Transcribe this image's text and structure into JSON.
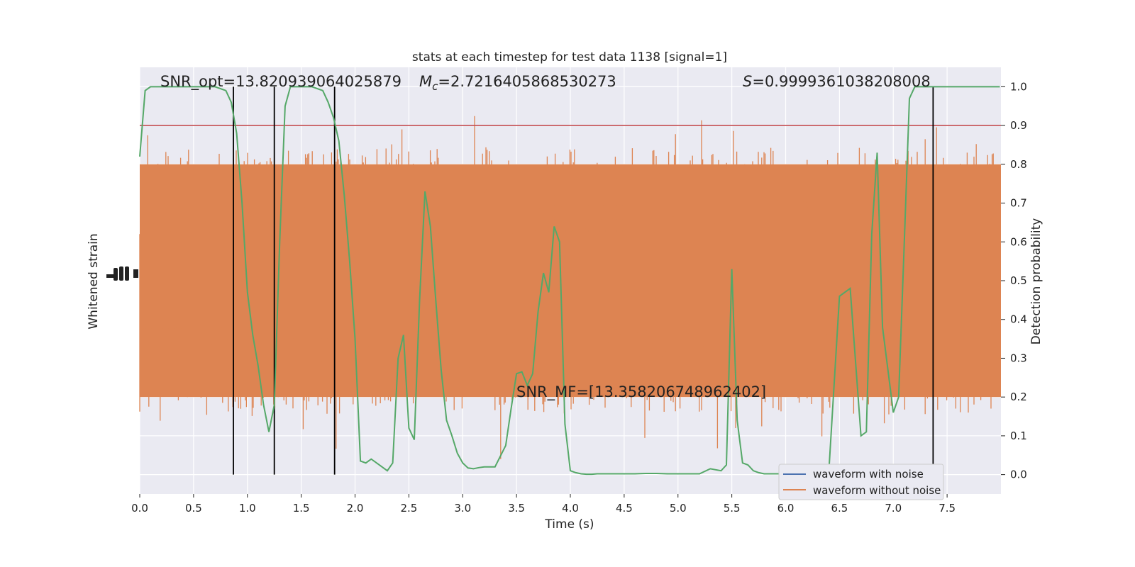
{
  "chart_data": {
    "type": "line",
    "title": "stats at each timestep for test data 1138 [signal=1]",
    "xlabel": "Time (s)",
    "ylabel_left": "Whitened strain",
    "ylabel_right": "Detection probability",
    "xlim": [
      0,
      8
    ],
    "ylim_right": [
      -0.05,
      1.05
    ],
    "x_ticks": [
      "0.0",
      "0.5",
      "1.0",
      "1.5",
      "2.0",
      "2.5",
      "3.0",
      "3.5",
      "4.0",
      "4.5",
      "5.0",
      "5.5",
      "6.0",
      "6.5",
      "7.0",
      "7.5"
    ],
    "y_ticks_right": [
      "0.0",
      "0.1",
      "0.2",
      "0.3",
      "0.4",
      "0.5",
      "0.6",
      "0.7",
      "0.8",
      "0.9",
      "1.0"
    ],
    "grid": true,
    "threshold": 0.9,
    "threshold_color": "#c44e52",
    "detection_boundaries": [
      0.87,
      1.25,
      1.81,
      7.37
    ],
    "annotations": {
      "snr_opt": "SNR_opt=13.820939064025879",
      "chirp_mass_symbol": "M",
      "chirp_mass_subscript": "c",
      "chirp_mass_value": "=2.7216405868530273",
      "s_symbol": "S",
      "s_value": "=0.9999361038208008",
      "snr_mf": "SNR_MF=[13.358206748962402]"
    },
    "legend": {
      "position": "lower-right",
      "entries": [
        {
          "name": "waveform with noise",
          "color": "#4c72b0"
        },
        {
          "name": "waveform without noise",
          "color": "#dd8452"
        }
      ]
    },
    "noise_color": "#dd8452",
    "noise_band": {
      "center": 0.5,
      "core_half_width": 0.3,
      "spike_extent": 0.5
    },
    "probability_color": "#55a868",
    "probability_series": {
      "name": "Detection probability",
      "x": [
        0.0,
        0.05,
        0.1,
        0.15,
        0.2,
        0.3,
        0.4,
        0.5,
        0.6,
        0.7,
        0.8,
        0.85,
        0.9,
        0.95,
        1.0,
        1.05,
        1.1,
        1.15,
        1.2,
        1.25,
        1.3,
        1.35,
        1.4,
        1.5,
        1.6,
        1.7,
        1.75,
        1.8,
        1.85,
        1.9,
        1.95,
        2.0,
        2.05,
        2.1,
        2.15,
        2.2,
        2.3,
        2.35,
        2.4,
        2.45,
        2.5,
        2.55,
        2.6,
        2.65,
        2.7,
        2.75,
        2.8,
        2.85,
        2.9,
        2.95,
        3.0,
        3.05,
        3.1,
        3.15,
        3.2,
        3.3,
        3.4,
        3.45,
        3.5,
        3.55,
        3.6,
        3.65,
        3.7,
        3.75,
        3.8,
        3.85,
        3.9,
        3.95,
        4.0,
        4.05,
        4.1,
        4.15,
        4.2,
        4.25,
        4.3,
        4.4,
        4.5,
        4.6,
        4.7,
        4.8,
        4.9,
        5.0,
        5.1,
        5.2,
        5.3,
        5.4,
        5.45,
        5.5,
        5.55,
        5.6,
        5.65,
        5.7,
        5.75,
        5.8,
        5.85,
        5.9,
        5.95,
        6.0,
        6.1,
        6.2,
        6.3,
        6.4,
        6.5,
        6.6,
        6.7,
        6.75,
        6.8,
        6.85,
        6.9,
        6.95,
        7.0,
        7.05,
        7.1,
        7.15,
        7.2,
        7.25,
        7.3,
        7.35,
        7.4,
        7.45,
        7.5,
        7.6,
        7.7,
        7.8,
        7.9,
        7.99
      ],
      "y": [
        0.82,
        0.99,
        1.0,
        1.0,
        1.0,
        1.0,
        1.0,
        1.0,
        1.0,
        1.0,
        0.99,
        0.96,
        0.88,
        0.7,
        0.47,
        0.36,
        0.28,
        0.18,
        0.11,
        0.18,
        0.6,
        0.95,
        1.0,
        1.0,
        1.0,
        0.99,
        0.96,
        0.92,
        0.86,
        0.72,
        0.55,
        0.35,
        0.035,
        0.03,
        0.04,
        0.03,
        0.01,
        0.03,
        0.3,
        0.36,
        0.12,
        0.09,
        0.45,
        0.73,
        0.64,
        0.45,
        0.27,
        0.14,
        0.1,
        0.055,
        0.03,
        0.017,
        0.015,
        0.018,
        0.02,
        0.02,
        0.075,
        0.17,
        0.26,
        0.265,
        0.23,
        0.26,
        0.42,
        0.52,
        0.47,
        0.64,
        0.6,
        0.13,
        0.01,
        0.005,
        0.002,
        0.001,
        0.001,
        0.002,
        0.002,
        0.002,
        0.002,
        0.002,
        0.003,
        0.003,
        0.002,
        0.002,
        0.002,
        0.002,
        0.015,
        0.01,
        0.025,
        0.53,
        0.14,
        0.03,
        0.025,
        0.01,
        0.005,
        0.002,
        0.002,
        0.002,
        0.002,
        0.003,
        0.003,
        0.002,
        0.002,
        0.002,
        0.46,
        0.48,
        0.1,
        0.11,
        0.62,
        0.83,
        0.38,
        0.27,
        0.16,
        0.2,
        0.58,
        0.97,
        1.0,
        1.0,
        1.0,
        1.0,
        1.0,
        1.0,
        1.0,
        1.0,
        1.0,
        1.0,
        1.0,
        1.0
      ]
    }
  }
}
